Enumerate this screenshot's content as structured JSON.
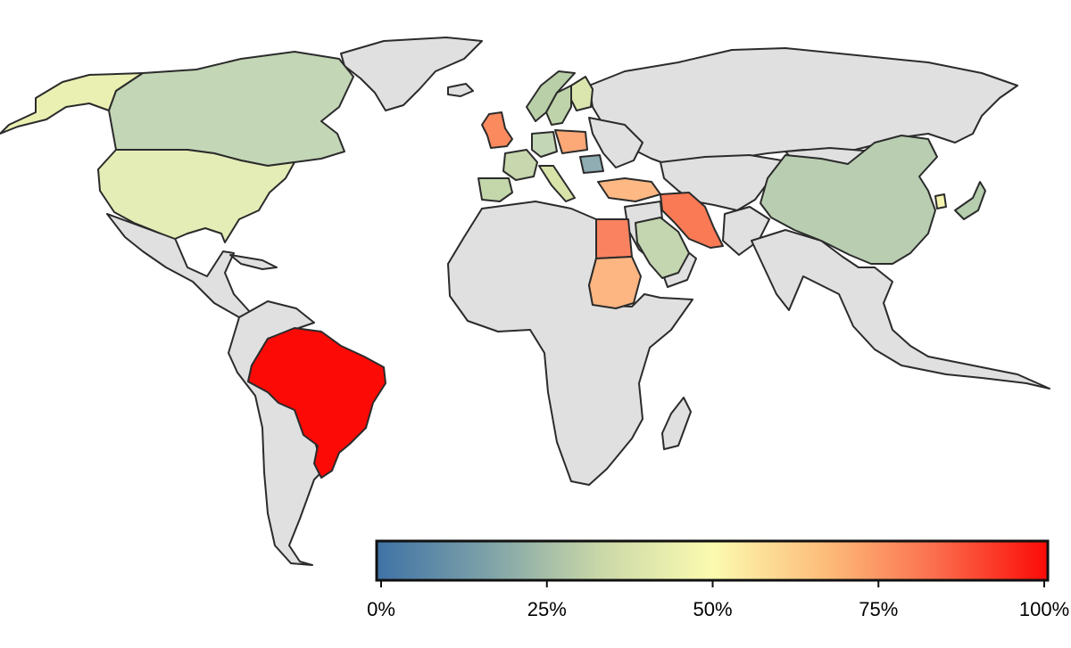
{
  "map": {
    "type": "choropleth",
    "no_data_color": "#e0e0e0",
    "border_color": "#2b2b2b",
    "colormap": [
      "#3f72a6",
      "#7fa3a8",
      "#c9d7a8",
      "#fbfbb0",
      "#fdbc7a",
      "#fb6f4e",
      "#fb0a06"
    ],
    "countries": [
      {
        "name": "Brazil",
        "value": 100
      },
      {
        "name": "Iran",
        "value": 75
      },
      {
        "name": "Egypt",
        "value": 72
      },
      {
        "name": "United Kingdom",
        "value": 68
      },
      {
        "name": "Poland",
        "value": 65
      },
      {
        "name": "Turkey",
        "value": 62
      },
      {
        "name": "Sudan",
        "value": 60
      },
      {
        "name": "South Korea",
        "value": 50
      },
      {
        "name": "United States",
        "value": 45
      },
      {
        "name": "Alaska (United States)",
        "value": 45
      },
      {
        "name": "Finland",
        "value": 40
      },
      {
        "name": "Canada",
        "value": 30
      },
      {
        "name": "China",
        "value": 30
      },
      {
        "name": "Japan",
        "value": 30
      },
      {
        "name": "Saudi Arabia",
        "value": 30
      },
      {
        "name": "Spain",
        "value": 30
      },
      {
        "name": "France",
        "value": 32
      },
      {
        "name": "Germany",
        "value": 30
      },
      {
        "name": "Italy",
        "value": 35
      },
      {
        "name": "Sweden",
        "value": 30
      },
      {
        "name": "Norway",
        "value": 28
      },
      {
        "name": "Romania",
        "value": 15
      }
    ]
  },
  "colorbar": {
    "min": 0,
    "max": 100,
    "ticks": [
      {
        "value": 0,
        "label": "0%"
      },
      {
        "value": 25,
        "label": "25%"
      },
      {
        "value": 50,
        "label": "50%"
      },
      {
        "value": 75,
        "label": "75%"
      },
      {
        "value": 100,
        "label": "100%"
      }
    ]
  }
}
